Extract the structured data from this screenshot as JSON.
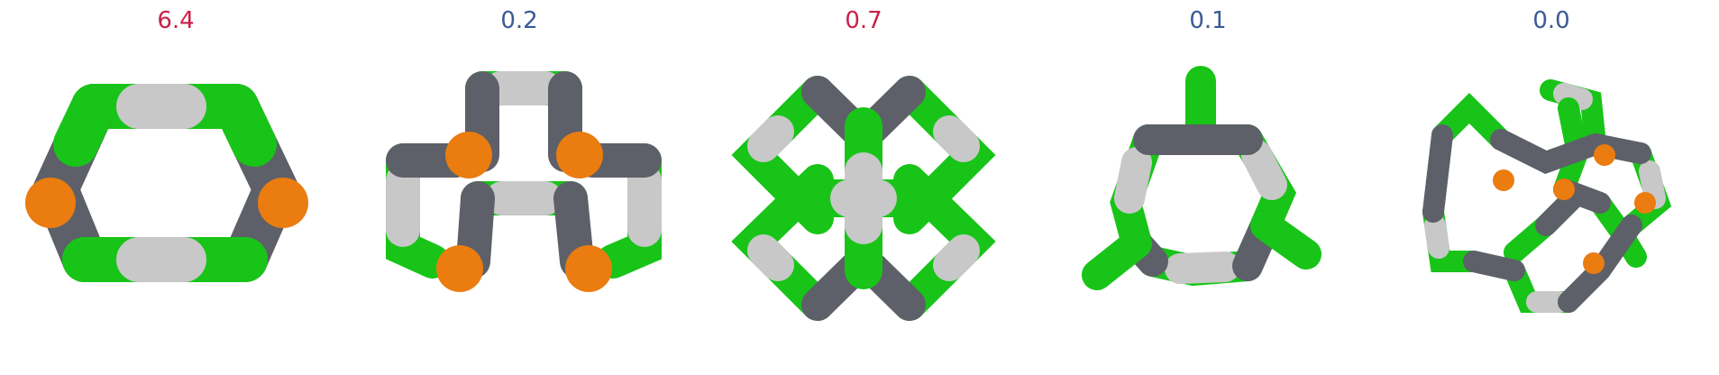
{
  "colors": {
    "high": "#cc1f4a",
    "low": "#3a5a94",
    "green": "#18c418",
    "grey": "#5d6068",
    "white": "#c8c8c8",
    "orange": "#ea7c10"
  },
  "panels": [
    {
      "score": "6.4",
      "level": "high"
    },
    {
      "score": "0.2",
      "level": "low"
    },
    {
      "score": "0.7",
      "level": "high"
    },
    {
      "score": "0.1",
      "level": "low"
    },
    {
      "score": "0.0",
      "level": "low"
    }
  ]
}
